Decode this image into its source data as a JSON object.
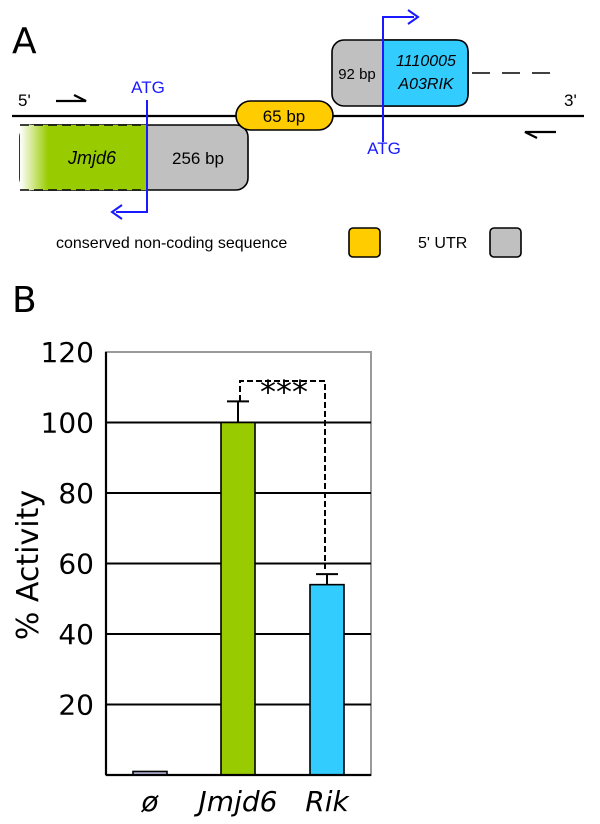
{
  "panel_a": {
    "label": "A",
    "five_prime": "5'",
    "three_prime": "3'",
    "atg_left": "ATG",
    "atg_right": "ATG",
    "jmjd6_label": "Jmjd6",
    "jmjd6_utr": "256 bp",
    "cns_label": "65 bp",
    "rik_utr": "92 bp",
    "rik_line1": "1110005",
    "rik_line2": "A03RIK",
    "legend_cns": "conserved non-coding sequence",
    "legend_utr": "5' UTR",
    "colors": {
      "jmjd6": "#99cc00",
      "rik": "#33ccff",
      "cns": "#ffcc00",
      "utr": "#c0c0c0",
      "arrow": "#1a1aff"
    }
  },
  "panel_b": {
    "label": "B"
  },
  "chart_data": {
    "type": "bar",
    "categories": [
      "ø",
      "Jmjd6",
      "Rik"
    ],
    "values": [
      1,
      100,
      54
    ],
    "errors": [
      0,
      6,
      3
    ],
    "colors": [
      "#b8b8dd",
      "#99cc00",
      "#33ccff"
    ],
    "ylabel": "% Activity",
    "ylim": [
      0,
      120
    ],
    "yticks": [
      "20",
      "40",
      "60",
      "80",
      "100",
      "120"
    ],
    "significance": "***",
    "grid": true
  }
}
